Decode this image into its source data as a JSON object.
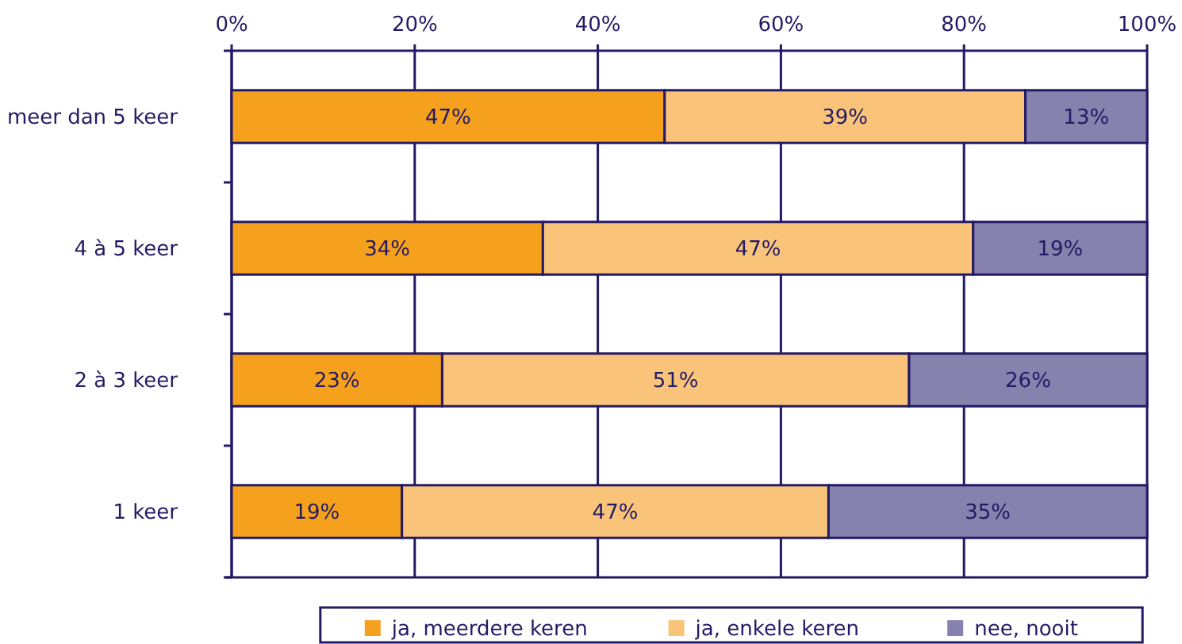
{
  "chart_data": {
    "type": "bar",
    "orientation": "horizontal",
    "stacked": true,
    "categories": [
      "meer dan 5 keer",
      "4 à 5 keer",
      "2 à 3 keer",
      "1 keer"
    ],
    "series": [
      {
        "name": "ja, meerdere keren",
        "color": "#f5a11e",
        "values": [
          47.3,
          34,
          23,
          18.6
        ],
        "value_labels": [
          "47%",
          "34%",
          "23%",
          "19%"
        ]
      },
      {
        "name": "ja, enkele keren",
        "color": "#f9c47a",
        "values": [
          39.4,
          47,
          51,
          46.6
        ],
        "value_labels": [
          "39%",
          "47%",
          "51%",
          "47%"
        ]
      },
      {
        "name": "nee, nooit",
        "color": "#8781ad",
        "values": [
          13.3,
          19,
          26,
          34.8
        ],
        "value_labels": [
          "13%",
          "19%",
          "26%",
          "35%"
        ]
      }
    ],
    "xlim": [
      0,
      100
    ],
    "xticks": [
      {
        "value": 0,
        "label": "0%"
      },
      {
        "value": 20,
        "label": "20%"
      },
      {
        "value": 40,
        "label": "40%"
      },
      {
        "value": 60,
        "label": "60%"
      },
      {
        "value": 80,
        "label": "80%"
      },
      {
        "value": 100,
        "label": "100%"
      }
    ],
    "grid": "x",
    "legend": "bottom"
  }
}
